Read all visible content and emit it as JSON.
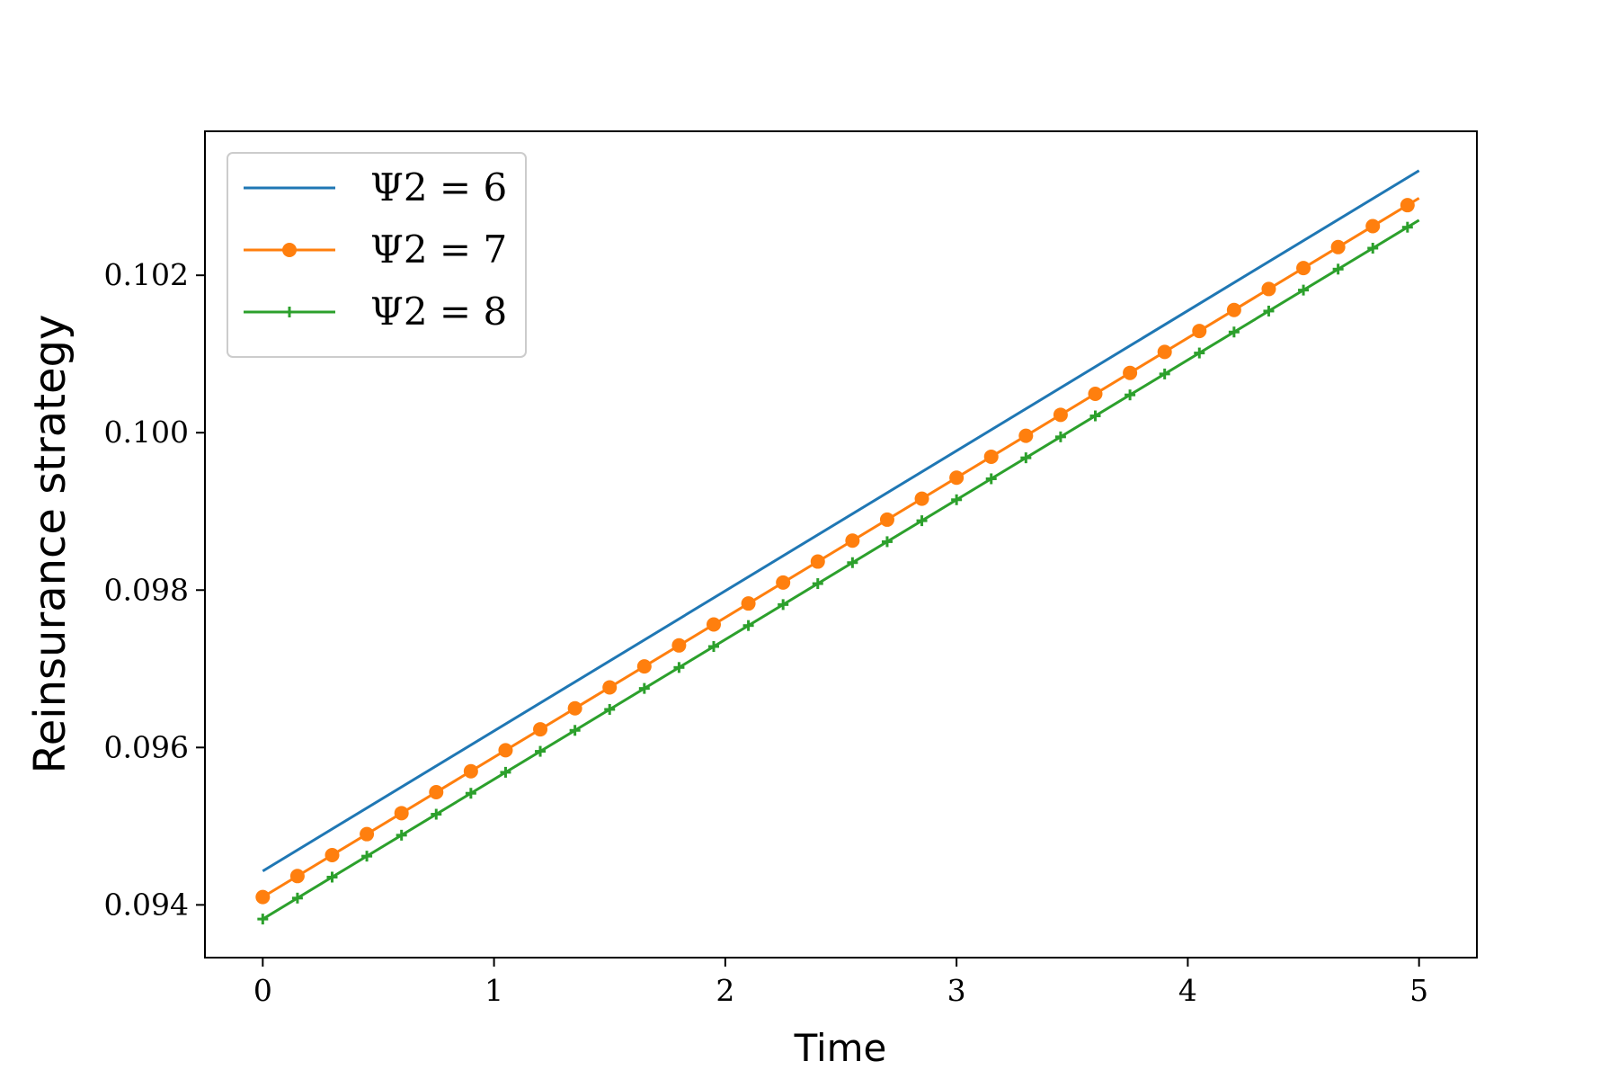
{
  "chart_data": {
    "type": "line",
    "title": "",
    "xlabel": "Time",
    "ylabel": "Reinsurance strategy",
    "xlim": [
      -0.25,
      5.25
    ],
    "ylim": [
      0.09333,
      0.10383
    ],
    "xticks": [
      0,
      1,
      2,
      3,
      4,
      5
    ],
    "xtick_labels": [
      "0",
      "1",
      "2",
      "3",
      "4",
      "5"
    ],
    "yticks": [
      0.094,
      0.096,
      0.098,
      0.1,
      0.102
    ],
    "ytick_labels": [
      "0.094",
      "0.096",
      "0.098",
      "0.100",
      "0.102"
    ],
    "grid": false,
    "legend_position": "top-left",
    "series": [
      {
        "name": "Ψ2 = 6",
        "color": "#1f77b4",
        "marker": "none",
        "x_start": 0,
        "x_end": 5,
        "y_start": 0.09443,
        "y_end": 0.10333
      },
      {
        "name": "Ψ2 = 7",
        "color": "#ff7f0e",
        "marker": "circle",
        "x_start": 0,
        "x_end": 5,
        "y_start": 0.0941,
        "y_end": 0.10298,
        "marker_spacing": 0.15
      },
      {
        "name": "Ψ2 = 8",
        "color": "#2ca02c",
        "marker": "plus",
        "x_start": 0,
        "x_end": 5,
        "y_start": 0.09382,
        "y_end": 0.1027,
        "marker_spacing": 0.15
      }
    ]
  }
}
